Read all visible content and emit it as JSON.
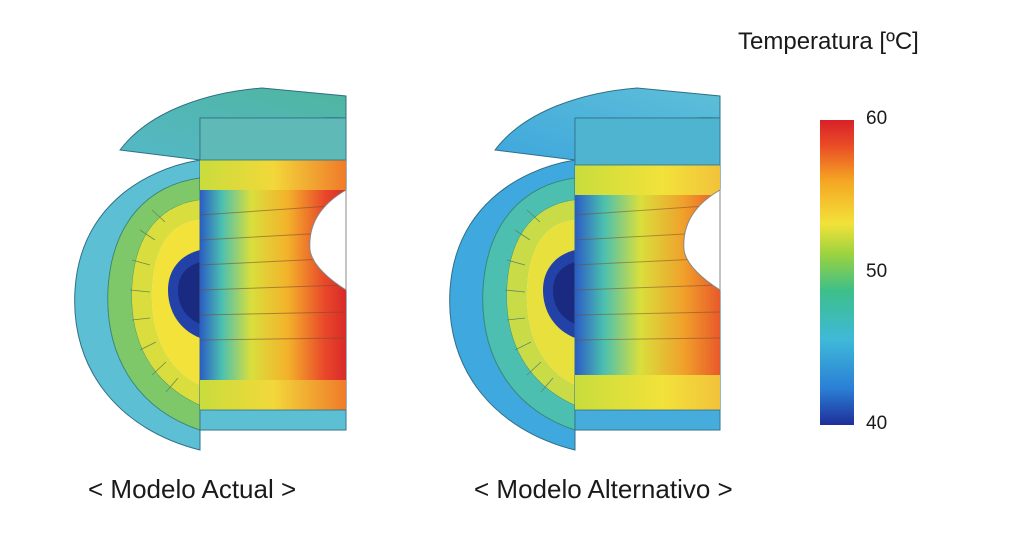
{
  "models": [
    {
      "caption": "< Modelo Actual >",
      "scheme": "hot"
    },
    {
      "caption": "< Modelo Alternativo >",
      "scheme": "cool"
    }
  ],
  "legend": {
    "title": "Temperatura [ºC]",
    "ticks": [
      {
        "value": 60,
        "label": "60"
      },
      {
        "value": 50,
        "label": "50"
      },
      {
        "value": 40,
        "label": "40"
      }
    ],
    "min": 40,
    "max": 60,
    "colors": [
      "#1f2f9a",
      "#2a7fd6",
      "#3fb9d8",
      "#3dbf8a",
      "#7cc840",
      "#f2e23a",
      "#f5a623",
      "#e94a26",
      "#d8202a"
    ]
  }
}
